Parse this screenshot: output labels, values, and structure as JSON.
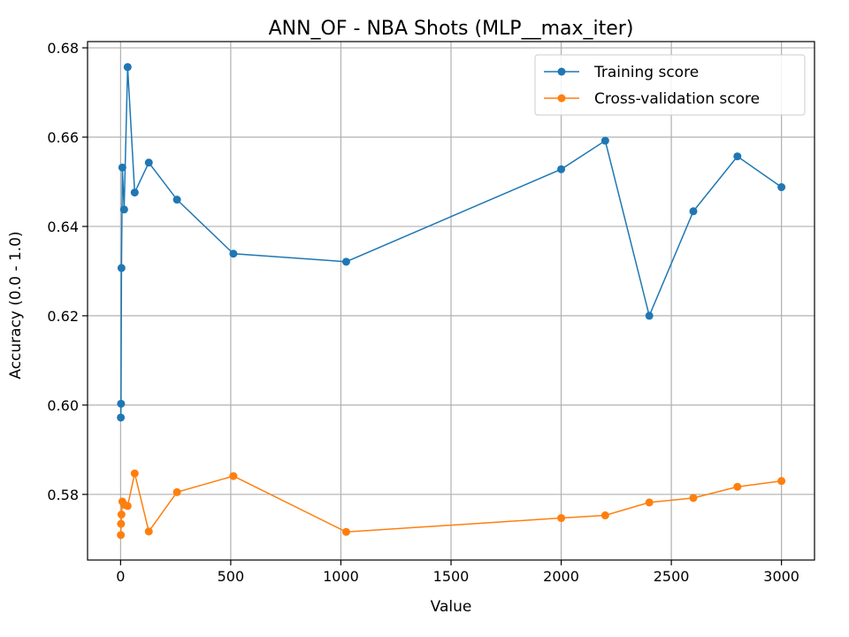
{
  "chart_data": {
    "type": "line",
    "title": "ANN_OF - NBA Shots (MLP__max_iter)",
    "xlabel": "Value",
    "ylabel": "Accuracy (0.0 - 1.0)",
    "xlim": [
      -150,
      3150
    ],
    "ylim": [
      0.5653,
      0.6814
    ],
    "xticks": [
      0,
      500,
      1000,
      1500,
      2000,
      2500,
      3000
    ],
    "xtick_labels": [
      "0",
      "500",
      "1000",
      "1500",
      "2000",
      "2500",
      "3000"
    ],
    "yticks": [
      0.58,
      0.6,
      0.62,
      0.64,
      0.66,
      0.68
    ],
    "ytick_labels": [
      "0.58",
      "0.60",
      "0.62",
      "0.64",
      "0.66",
      "0.68"
    ],
    "grid": true,
    "legend_position": "top-right",
    "series": [
      {
        "name": "Training score",
        "color": "#1f77b4",
        "x": [
          1,
          2,
          4,
          8,
          16,
          32,
          64,
          128,
          256,
          512,
          1024,
          2000,
          2200,
          2400,
          2600,
          2800,
          3000
        ],
        "y": [
          0.5972,
          0.6003,
          0.6307,
          0.6532,
          0.6438,
          0.6757,
          0.6476,
          0.6543,
          0.646,
          0.6339,
          0.6321,
          0.6528,
          0.6592,
          0.62,
          0.6434,
          0.6557,
          0.6488
        ]
      },
      {
        "name": "Cross-validation score",
        "color": "#ff7f0e",
        "x": [
          1,
          2,
          4,
          8,
          16,
          32,
          64,
          128,
          256,
          512,
          1024,
          2000,
          2200,
          2400,
          2600,
          2800,
          3000
        ],
        "y": [
          0.5709,
          0.5734,
          0.5755,
          0.5784,
          0.5777,
          0.5774,
          0.5847,
          0.5717,
          0.5805,
          0.5841,
          0.5716,
          0.5747,
          0.5753,
          0.5782,
          0.5792,
          0.5817,
          0.583
        ]
      }
    ]
  }
}
